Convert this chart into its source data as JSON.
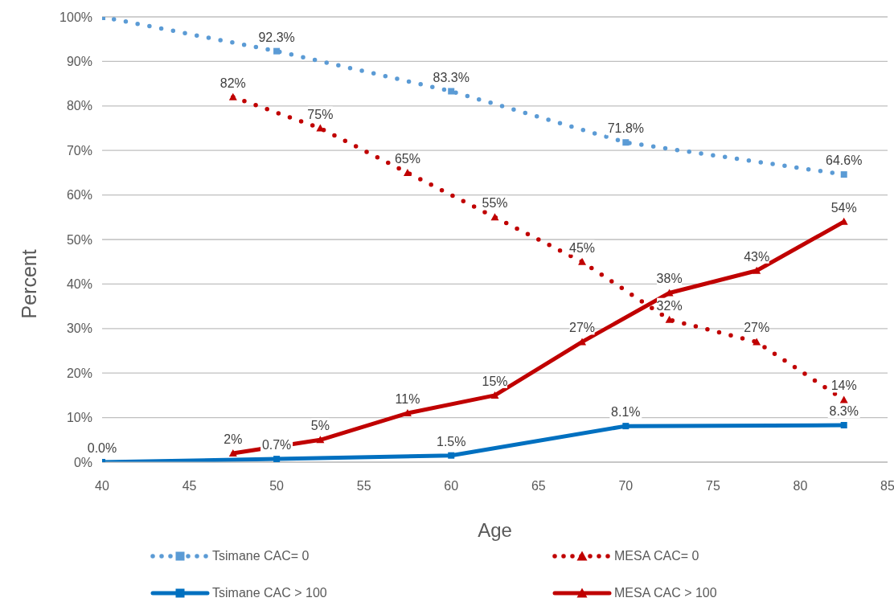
{
  "chart_data": {
    "type": "line",
    "xlabel": "Age",
    "ylabel": "Percent",
    "xlim": [
      40,
      85
    ],
    "xticks": [
      40,
      45,
      50,
      55,
      60,
      65,
      70,
      75,
      80,
      85
    ],
    "ylim": [
      0,
      100
    ],
    "yticks": [
      {
        "value": 0,
        "label": "0%"
      },
      {
        "value": 10,
        "label": "10%"
      },
      {
        "value": 20,
        "label": "20%"
      },
      {
        "value": 30,
        "label": "30%"
      },
      {
        "value": 40,
        "label": "40%"
      },
      {
        "value": 50,
        "label": "50%"
      },
      {
        "value": 60,
        "label": "60%"
      },
      {
        "value": 70,
        "label": "70%"
      },
      {
        "value": 80,
        "label": "80%"
      },
      {
        "value": 90,
        "label": "90%"
      },
      {
        "value": 100,
        "label": "100%"
      }
    ],
    "grid": "y",
    "legend": "bottom",
    "series": [
      {
        "name": "Tsimane CAC= 0",
        "color": "#5b9bd5",
        "line_style": "dotted",
        "marker": "square",
        "x": [
          40,
          50,
          60,
          70,
          82.5
        ],
        "values": [
          100,
          92.3,
          83.3,
          71.8,
          64.6
        ],
        "value_labels": [
          null,
          "92.3%",
          "83.3%",
          "71.8%",
          "64.6%"
        ]
      },
      {
        "name": "MESA CAC= 0",
        "color": "#c00000",
        "line_style": "dotted",
        "marker": "triangle",
        "x": [
          47.5,
          52.5,
          57.5,
          62.5,
          67.5,
          72.5,
          77.5,
          82.5
        ],
        "values": [
          82,
          75,
          65,
          55,
          45,
          32,
          27,
          14
        ],
        "value_labels": [
          "82%",
          "75%",
          "65%",
          "55%",
          "45%",
          "32%",
          "27%",
          "14%"
        ]
      },
      {
        "name": "Tsimane CAC > 100",
        "color": "#0070c0",
        "line_style": "solid",
        "marker": "square",
        "x": [
          40,
          50,
          60,
          70,
          82.5
        ],
        "values": [
          0.0,
          0.7,
          1.5,
          8.1,
          8.3
        ],
        "value_labels": [
          "0.0%",
          "0.7%",
          "1.5%",
          "8.1%",
          "8.3%"
        ]
      },
      {
        "name": "MESA CAC > 100",
        "color": "#c00000",
        "line_style": "solid",
        "marker": "triangle",
        "x": [
          47.5,
          52.5,
          57.5,
          62.5,
          67.5,
          72.5,
          77.5,
          82.5
        ],
        "values": [
          2,
          5,
          11,
          15,
          27,
          38,
          43,
          54
        ],
        "value_labels": [
          "2%",
          "5%",
          "11%",
          "15%",
          "27%",
          "38%",
          "43%",
          "54%"
        ]
      }
    ]
  }
}
